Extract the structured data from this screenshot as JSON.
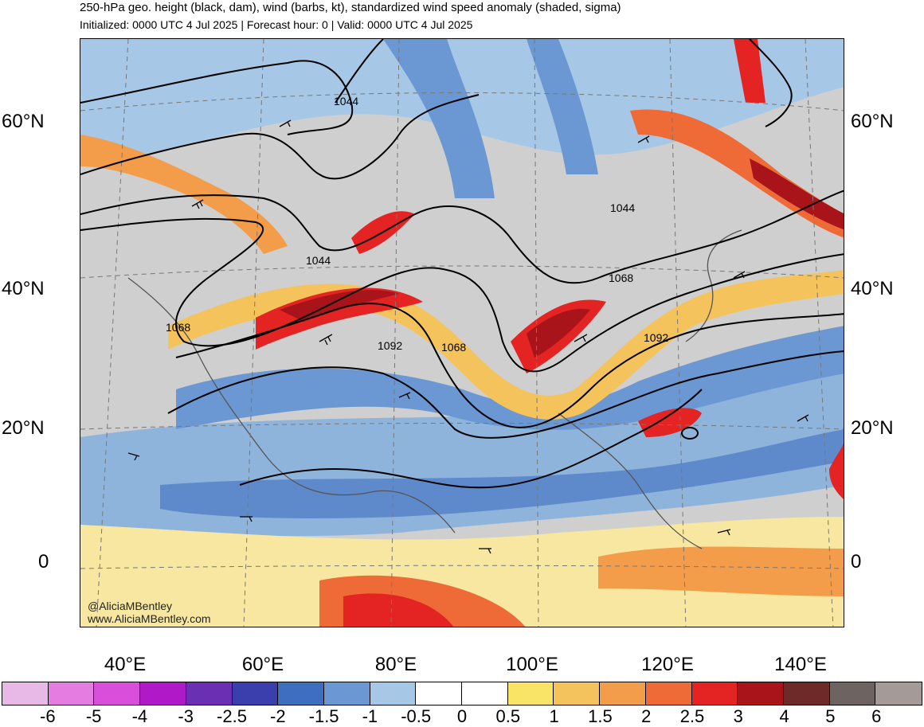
{
  "header": {
    "title": "250-hPa geo. height (black, dam), wind (barbs, kt), standardized wind speed anomaly (shaded, sigma)",
    "subtitle": "Initialized: 0000 UTC 4 Jul 2025 | Forecast hour: 0 | Valid: 0000 UTC 4 Jul 2025"
  },
  "map": {
    "lat_labels": [
      "60°N",
      "40°N",
      "20°N",
      "0"
    ],
    "lon_labels": [
      "40°E",
      "60°E",
      "80°E",
      "100°E",
      "120°E",
      "140°E"
    ],
    "contour_labels": [
      "1044",
      "1044",
      "1044",
      "1068",
      "1068",
      "1068",
      "1092",
      "1092"
    ],
    "credit_handle": "@AliciaMBentley",
    "credit_url": "www.AliciaMBentley.com"
  },
  "colorbar": {
    "labels": [
      "-6",
      "-5",
      "-4",
      "-3",
      "-2.5",
      "-2",
      "-1.5",
      "-1",
      "-0.5",
      "0",
      "0.5",
      "1",
      "1.5",
      "2",
      "2.5",
      "3",
      "4",
      "5",
      "6"
    ],
    "colors": [
      "#e8b8e6",
      "#e47ce2",
      "#d94fdc",
      "#b019c8",
      "#6a2fb3",
      "#3b3fae",
      "#3d6ebf",
      "#6b98d2",
      "#a6c8e6",
      "#ffffff",
      "#ffffff",
      "#f9e466",
      "#f5c35c",
      "#f39c4a",
      "#ee6a36",
      "#e42422",
      "#a8141a",
      "#6d2a28",
      "#6d6360",
      "#a49a98"
    ]
  }
}
